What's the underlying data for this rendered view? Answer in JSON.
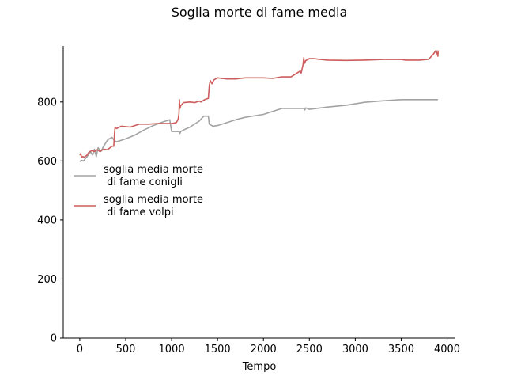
{
  "chart_data": {
    "type": "line",
    "title": "Soglia morte di fame media",
    "xlabel": "Tempo",
    "ylabel": "",
    "xlim": [
      -180,
      4090
    ],
    "ylim": [
      0,
      990
    ],
    "xticks": [
      0,
      500,
      1000,
      1500,
      2000,
      2500,
      3000,
      3500,
      4000
    ],
    "yticks": [
      0,
      200,
      400,
      600,
      800
    ],
    "grid": false,
    "legend_position": "center-left",
    "series": [
      {
        "name": "soglia media morte\n di fame conigli",
        "color": "#a3a3a3",
        "x": [
          0,
          20,
          40,
          60,
          80,
          100,
          120,
          140,
          160,
          180,
          200,
          230,
          260,
          300,
          320,
          350,
          380,
          400,
          430,
          500,
          600,
          700,
          800,
          900,
          980,
          1000,
          1050,
          1080,
          1090,
          1100,
          1150,
          1200,
          1300,
          1350,
          1400,
          1410,
          1450,
          1500,
          1600,
          1700,
          1800,
          2000,
          2100,
          2200,
          2300,
          2440,
          2450,
          2460,
          2500,
          2700,
          2900,
          3100,
          3300,
          3500,
          3700,
          3900
        ],
        "y": [
          598,
          602,
          600,
          608,
          615,
          625,
          630,
          620,
          640,
          615,
          645,
          632,
          650,
          670,
          675,
          680,
          668,
          665,
          668,
          675,
          688,
          705,
          720,
          732,
          740,
          700,
          700,
          700,
          693,
          700,
          708,
          715,
          735,
          752,
          752,
          725,
          718,
          720,
          730,
          740,
          748,
          758,
          768,
          778,
          778,
          778,
          773,
          780,
          775,
          783,
          789,
          799,
          804,
          808,
          808,
          808
        ]
      },
      {
        "name": "soglia media morte\n di fame volpi",
        "color": "#cd5c5c",
        "x": [
          0,
          10,
          20,
          30,
          50,
          80,
          100,
          130,
          160,
          190,
          220,
          260,
          300,
          330,
          350,
          370,
          380,
          385,
          400,
          450,
          550,
          650,
          750,
          850,
          950,
          1000,
          1050,
          1070,
          1080,
          1085,
          1090,
          1100,
          1130,
          1200,
          1250,
          1300,
          1320,
          1360,
          1400,
          1410,
          1420,
          1440,
          1460,
          1500,
          1600,
          1700,
          1800,
          2000,
          2100,
          2200,
          2300,
          2400,
          2410,
          2430,
          2440,
          2445,
          2460,
          2500,
          2550,
          2600,
          2700,
          2900,
          3100,
          3300,
          3500,
          3550,
          3700,
          3800,
          3850,
          3880,
          3900,
          3902
        ],
        "y": [
          620,
          625,
          612,
          615,
          613,
          620,
          630,
          635,
          632,
          638,
          632,
          640,
          638,
          645,
          650,
          650,
          700,
          715,
          710,
          718,
          715,
          725,
          725,
          727,
          727,
          727,
          730,
          740,
          760,
          808,
          778,
          788,
          798,
          800,
          798,
          803,
          800,
          808,
          812,
          855,
          873,
          862,
          875,
          882,
          878,
          878,
          882,
          882,
          880,
          885,
          885,
          905,
          898,
          925,
          950,
          930,
          940,
          947,
          947,
          945,
          942,
          941,
          942,
          944,
          944,
          942,
          942,
          945,
          962,
          975,
          955,
          975
        ]
      }
    ]
  }
}
